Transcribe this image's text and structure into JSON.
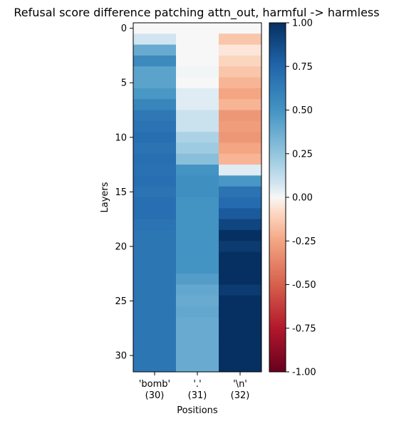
{
  "chart_data": {
    "type": "heatmap",
    "title": "Refusal score difference patching attn_out, harmful -> harmless",
    "xlabel": "Positions",
    "ylabel": "Layers",
    "x_categories": [
      {
        "token": "'bomb'",
        "index": "(30)"
      },
      {
        "token": "'.'",
        "index": "(31)"
      },
      {
        "token": "'\\n'",
        "index": "(32)"
      }
    ],
    "y_ticks": [
      0,
      5,
      10,
      15,
      20,
      25,
      30
    ],
    "n_layers": 32,
    "colormap": "RdBu",
    "color_range": [
      -1.0,
      1.0
    ],
    "colorbar_ticks": [
      "1.00",
      "0.75",
      "0.50",
      "0.25",
      "0.00",
      "-0.25",
      "-0.50",
      "-0.75",
      "-1.00"
    ],
    "columns": [
      {
        "position": "'bomb' (30)",
        "values": [
          0.0,
          0.08,
          0.38,
          0.55,
          0.42,
          0.42,
          0.48,
          0.58,
          0.65,
          0.68,
          0.7,
          0.68,
          0.7,
          0.69,
          0.7,
          0.68,
          0.7,
          0.7,
          0.68,
          0.66,
          0.66,
          0.66,
          0.66,
          0.66,
          0.66,
          0.66,
          0.66,
          0.66,
          0.66,
          0.66,
          0.66,
          0.66
        ]
      },
      {
        "position": "'.' (31)",
        "values": [
          0.0,
          0.0,
          0.0,
          0.0,
          0.01,
          0.0,
          0.05,
          0.05,
          0.1,
          0.1,
          0.18,
          0.22,
          0.28,
          0.5,
          0.52,
          0.52,
          0.5,
          0.5,
          0.5,
          0.5,
          0.5,
          0.5,
          0.5,
          0.45,
          0.4,
          0.38,
          0.4,
          0.38,
          0.38,
          0.38,
          0.38,
          0.38
        ]
      },
      {
        "position": "'\\n' (32)",
        "values": [
          0.0,
          -0.15,
          -0.05,
          -0.1,
          -0.15,
          -0.2,
          -0.25,
          -0.2,
          -0.3,
          -0.28,
          -0.3,
          -0.25,
          -0.2,
          0.05,
          0.48,
          0.68,
          0.72,
          0.8,
          0.9,
          1.0,
          0.95,
          1.0,
          1.0,
          1.0,
          0.95,
          1.0,
          1.0,
          1.0,
          1.0,
          1.0,
          1.0,
          1.0
        ]
      }
    ]
  }
}
